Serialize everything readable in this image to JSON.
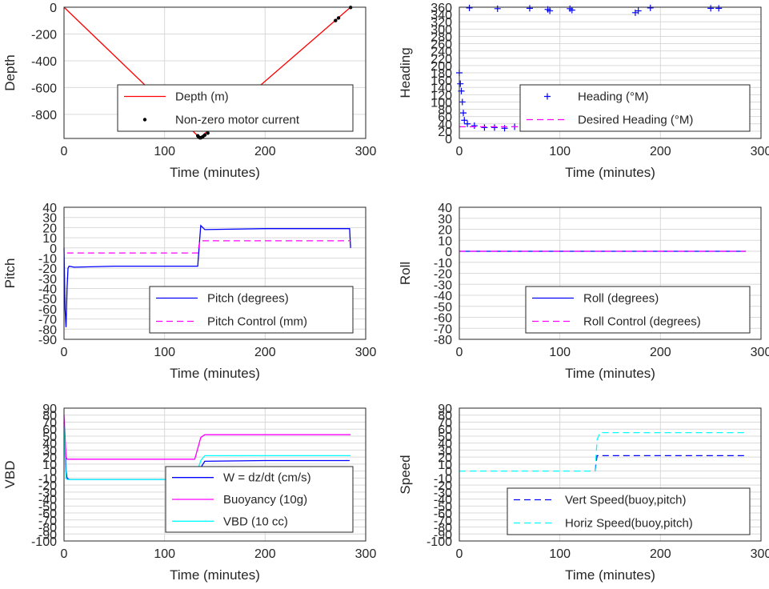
{
  "figure": {
    "background": "#ffffff",
    "grid_color": "#d9d9d9",
    "axis_color": "#262626"
  },
  "chart_data": [
    {
      "id": "depth",
      "type": "line",
      "xlabel": "Time (minutes)",
      "ylabel": "Depth",
      "xlim": [
        0,
        300
      ],
      "ylim": [
        -980,
        0
      ],
      "xticks": [
        "0",
        "100",
        "200",
        "300"
      ],
      "yticks": [
        "0",
        "-200",
        "-400",
        "-600",
        "-800"
      ],
      "grid": true,
      "legend": "center-right",
      "series": [
        {
          "name": "Depth (m)",
          "style": "line",
          "color": "#ff0000",
          "x": [
            0,
            135,
            285
          ],
          "y": [
            0,
            -975,
            0
          ]
        },
        {
          "name": "Non-zero motor current",
          "style": "dots",
          "color": "#000000",
          "x": [
            133,
            134,
            135,
            136,
            137,
            138,
            140,
            143,
            270,
            273,
            285
          ],
          "y": [
            -960,
            -970,
            -975,
            -975,
            -972,
            -968,
            -955,
            -940,
            -100,
            -80,
            -2
          ]
        }
      ]
    },
    {
      "id": "heading",
      "type": "scatter",
      "xlabel": "Time (minutes)",
      "ylabel": "Heading",
      "xlim": [
        0,
        300
      ],
      "ylim": [
        0,
        360
      ],
      "xticks": [
        "0",
        "100",
        "200",
        "300"
      ],
      "yticks": [
        "0",
        "20",
        "40",
        "60",
        "80",
        "100",
        "120",
        "140",
        "160",
        "180",
        "200",
        "220",
        "240",
        "260",
        "280",
        "300",
        "320",
        "340",
        "360"
      ],
      "grid": true,
      "legend": "right",
      "series": [
        {
          "name": "Heading (°M)",
          "style": "plus",
          "color": "#0000ff",
          "x": [
            0,
            1,
            2,
            3,
            4,
            5,
            8,
            15,
            25,
            35,
            45,
            55,
            65,
            75,
            85,
            95,
            105,
            115,
            125,
            135,
            145,
            155,
            165,
            175,
            185,
            195,
            205,
            215,
            225,
            235,
            245,
            255,
            265,
            275,
            284,
            10,
            38,
            70,
            88,
            90,
            110,
            112,
            175,
            178,
            190,
            250,
            258
          ],
          "y": [
            180,
            150,
            130,
            100,
            70,
            50,
            40,
            35,
            30,
            30,
            28,
            32,
            30,
            28,
            30,
            32,
            35,
            30,
            28,
            40,
            30,
            28,
            30,
            32,
            30,
            28,
            30,
            32,
            30,
            28,
            30,
            32,
            30,
            28,
            30,
            358,
            356,
            357,
            354,
            350,
            356,
            352,
            345,
            350,
            358,
            357,
            357
          ]
        },
        {
          "name": "Desired Heading (°M)",
          "style": "dash",
          "color": "#ff00ff",
          "x": [
            0,
            285
          ],
          "y": [
            32,
            32
          ]
        }
      ]
    },
    {
      "id": "pitch",
      "type": "line",
      "xlabel": "Time (minutes)",
      "ylabel": "Pitch",
      "xlim": [
        0,
        300
      ],
      "ylim": [
        -90,
        40
      ],
      "xticks": [
        "0",
        "100",
        "200",
        "300"
      ],
      "yticks": [
        "40",
        "30",
        "20",
        "10",
        "0",
        "-10",
        "-20",
        "-30",
        "-40",
        "-50",
        "-60",
        "-70",
        "-80",
        "-90"
      ],
      "grid": true,
      "legend": "bottom-right",
      "series": [
        {
          "name": "Pitch (degrees)",
          "style": "line",
          "color": "#0000ff",
          "x": [
            0,
            1,
            2,
            3,
            4,
            5,
            10,
            50,
            100,
            133,
            135,
            136,
            140,
            200,
            284,
            285
          ],
          "y": [
            0,
            -60,
            -78,
            -40,
            -20,
            -18,
            -19,
            -18,
            -18,
            -18,
            10,
            22,
            18,
            19,
            19,
            0
          ]
        },
        {
          "name": "Pitch Control (mm)",
          "style": "dash",
          "color": "#ff00ff",
          "x": [
            3,
            133,
            135,
            285
          ],
          "y": [
            -5,
            -5,
            7,
            7
          ]
        }
      ]
    },
    {
      "id": "roll",
      "type": "line",
      "xlabel": "Time (minutes)",
      "ylabel": "Roll",
      "xlim": [
        0,
        300
      ],
      "ylim": [
        -80,
        40
      ],
      "xticks": [
        "0",
        "100",
        "200",
        "300"
      ],
      "yticks": [
        "40",
        "30",
        "20",
        "10",
        "0",
        "-10",
        "-20",
        "-30",
        "-40",
        "-50",
        "-60",
        "-70",
        "-80"
      ],
      "grid": true,
      "legend": "bottom-right",
      "series": [
        {
          "name": "Roll (degrees)",
          "style": "line",
          "color": "#0000ff",
          "x": [
            0,
            285
          ],
          "y": [
            0,
            0
          ]
        },
        {
          "name": "Roll Control (degrees)",
          "style": "dash",
          "color": "#ff00ff",
          "x": [
            0,
            285
          ],
          "y": [
            0,
            0
          ]
        }
      ]
    },
    {
      "id": "vbd",
      "type": "line",
      "xlabel": "Time (minutes)",
      "ylabel": "VBD",
      "xlim": [
        0,
        300
      ],
      "ylim": [
        -100,
        90
      ],
      "xticks": [
        "0",
        "100",
        "200",
        "300"
      ],
      "yticks": [
        "90",
        "80",
        "70",
        "60",
        "50",
        "40",
        "30",
        "20",
        "10",
        "0",
        "-10",
        "-20",
        "-30",
        "-40",
        "-50",
        "-60",
        "-70",
        "-80",
        "-90",
        "-100"
      ],
      "grid": true,
      "legend": "bottom-right",
      "series": [
        {
          "name": "W = dz/dt (cm/s)",
          "style": "line",
          "color": "#0000ff",
          "x": [
            0,
            1,
            2,
            3,
            5,
            20,
            60,
            100,
            133,
            136,
            140,
            200,
            284
          ],
          "y": [
            70,
            40,
            0,
            -10,
            -12,
            -12,
            -12,
            -12,
            -10,
            5,
            14,
            15,
            15
          ]
        },
        {
          "name": "Buoyancy (10g)",
          "style": "line",
          "color": "#ff00ff",
          "x": [
            0,
            1,
            2,
            3,
            5,
            130,
            136,
            140,
            285
          ],
          "y": [
            80,
            50,
            20,
            17,
            17,
            17,
            48,
            52,
            52
          ]
        },
        {
          "name": "VBD (10 cc)",
          "style": "line",
          "color": "#00ffff",
          "x": [
            0,
            1,
            2,
            3,
            5,
            130,
            136,
            140,
            285
          ],
          "y": [
            65,
            20,
            -10,
            -12,
            -12,
            -12,
            15,
            22,
            22
          ]
        }
      ]
    },
    {
      "id": "speed",
      "type": "line",
      "xlabel": "Time (minutes)",
      "ylabel": "Speed",
      "xlim": [
        0,
        300
      ],
      "ylim": [
        -100,
        90
      ],
      "xticks": [
        "0",
        "100",
        "200",
        "300"
      ],
      "yticks": [
        "90",
        "80",
        "70",
        "60",
        "50",
        "40",
        "30",
        "20",
        "10",
        "0",
        "-10",
        "-20",
        "-30",
        "-40",
        "-50",
        "-60",
        "-70",
        "-80",
        "-90",
        "-100"
      ],
      "grid": true,
      "legend": "bottom-right",
      "series": [
        {
          "name": "Vert Speed(buoy,pitch)",
          "style": "dash",
          "color": "#0000ff",
          "x": [
            135,
            137,
            285
          ],
          "y": [
            0,
            22,
            22
          ]
        },
        {
          "name": "Horiz Speed(buoy,pitch)",
          "style": "dash",
          "color": "#00ffff",
          "x": [
            0,
            135,
            137,
            140,
            285
          ],
          "y": [
            0,
            0,
            45,
            55,
            55
          ]
        }
      ]
    }
  ]
}
